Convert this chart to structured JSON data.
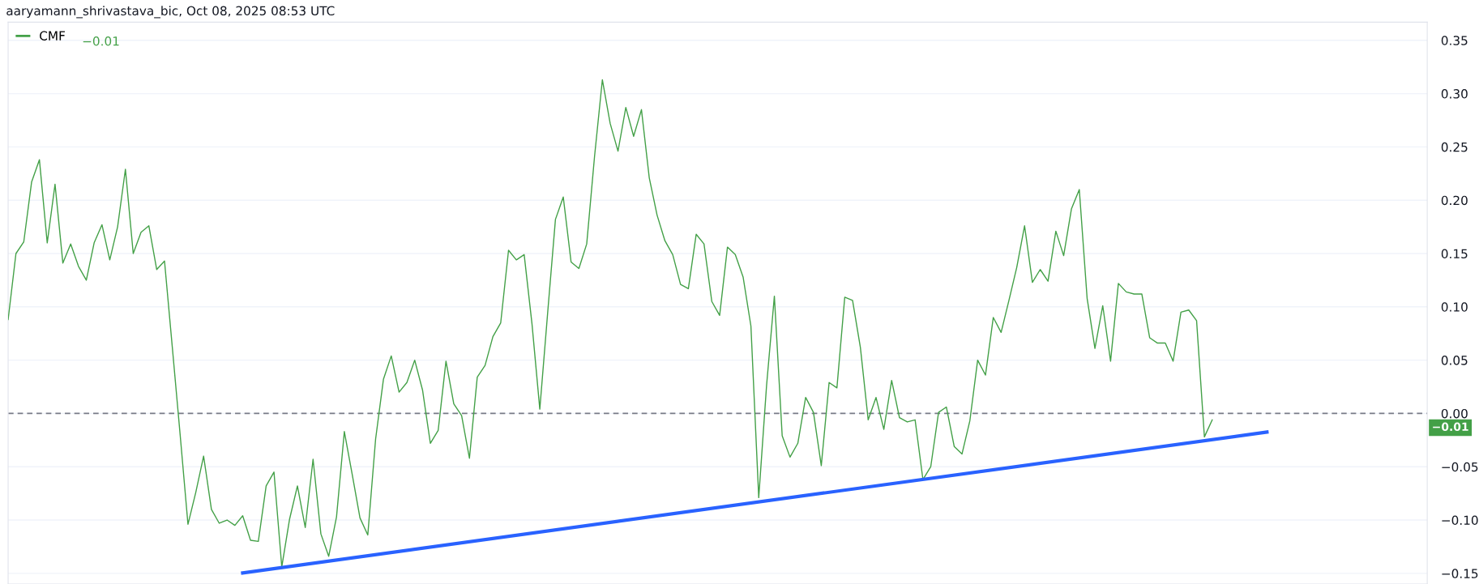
{
  "chart_data": {
    "type": "line",
    "title": "aaryamann_shrivastava_bic, Oct 08, 2025 08:53 UTC",
    "legend": "top left",
    "grid": "y",
    "tick_labels": "y",
    "categories": [
      null,
      null,
      null,
      null,
      null,
      null,
      null,
      null,
      null,
      null,
      null,
      null,
      null,
      null,
      null,
      null,
      null,
      null,
      null,
      null,
      null,
      null,
      null,
      null,
      null,
      null,
      null,
      null,
      null,
      null,
      null,
      null,
      null,
      null,
      null,
      null,
      null,
      null,
      null,
      null,
      null,
      null,
      null,
      null,
      null,
      null,
      null,
      null,
      null,
      null,
      null,
      null,
      null,
      null,
      null,
      null,
      null,
      null,
      null,
      null,
      null,
      null,
      null,
      null,
      null,
      null,
      null,
      null,
      null,
      null,
      null,
      null,
      null,
      null,
      null,
      null,
      null,
      null,
      null,
      null,
      null,
      null,
      null,
      null,
      null,
      null,
      null,
      null,
      null,
      null,
      null,
      null,
      null,
      null,
      null,
      null,
      null,
      null,
      null,
      null,
      null,
      null,
      null,
      null,
      null,
      null,
      null,
      null,
      null,
      null,
      null,
      null,
      null,
      null,
      null,
      null,
      null,
      null,
      null,
      null,
      null,
      null,
      null,
      null,
      null,
      null,
      null,
      null,
      null,
      null,
      null,
      null,
      null,
      null,
      null,
      null,
      null,
      null,
      null,
      null,
      null,
      null,
      null,
      null,
      null,
      null,
      null,
      null,
      null,
      null,
      null,
      null,
      null,
      null,
      null,
      null,
      null,
      null,
      null,
      null,
      null,
      null,
      null,
      null,
      null,
      null,
      null,
      null,
      null,
      null,
      null,
      null,
      null,
      null,
      null,
      null,
      null,
      null,
      null,
      null,
      null,
      null
    ],
    "ylim": [
      -0.16,
      0.367
    ],
    "yticks": [
      {
        "value": -0.15,
        "label": "−0.15"
      },
      {
        "value": -0.1,
        "label": "−0.10"
      },
      {
        "value": -0.05,
        "label": "−0.05"
      },
      {
        "value": 0,
        "label": "0.00"
      },
      {
        "value": 0.05,
        "label": "0.05"
      },
      {
        "value": 0.1,
        "label": "0.10"
      },
      {
        "value": 0.15,
        "label": "0.15"
      },
      {
        "value": 0.2,
        "label": "0.20"
      },
      {
        "value": 0.25,
        "label": "0.25"
      },
      {
        "value": 0.3,
        "label": "0.30"
      },
      {
        "value": 0.35,
        "label": "0.35"
      }
    ],
    "ref_lines": [
      {
        "axis": "y",
        "value": 0,
        "label": null,
        "color": "#787b86",
        "line_style": "dashed"
      }
    ],
    "annotations": [
      "−0.01",
      "−0.01"
    ],
    "series": [
      {
        "name": "CMF",
        "color": "#43a047",
        "values": [
          0.088,
          0.15,
          0.161,
          0.217,
          0.238,
          0.16,
          0.215,
          0.141,
          0.159,
          0.138,
          0.125,
          0.16,
          0.177,
          0.144,
          0.175,
          0.229,
          0.15,
          0.17,
          0.176,
          0.135,
          0.143,
          0.062,
          -0.02,
          -0.104,
          -0.074,
          -0.04,
          -0.09,
          -0.103,
          -0.1,
          -0.105,
          -0.096,
          -0.119,
          -0.12,
          -0.068,
          -0.055,
          -0.144,
          -0.099,
          -0.068,
          -0.107,
          -0.043,
          -0.113,
          -0.134,
          -0.097,
          -0.017,
          -0.057,
          -0.098,
          -0.114,
          -0.024,
          0.032,
          0.054,
          0.02,
          0.029,
          0.05,
          0.022,
          -0.028,
          -0.016,
          0.049,
          0.009,
          -0.002,
          -0.042,
          0.034,
          0.045,
          0.072,
          0.085,
          0.153,
          0.144,
          0.149,
          0.084,
          0.004,
          0.094,
          0.182,
          0.203,
          0.142,
          0.136,
          0.159,
          0.241,
          0.313,
          0.272,
          0.246,
          0.287,
          0.26,
          0.285,
          0.221,
          0.186,
          0.162,
          0.149,
          0.121,
          0.117,
          0.168,
          0.159,
          0.105,
          0.092,
          0.156,
          0.149,
          0.128,
          0.082,
          -0.079,
          0.026,
          0.11,
          -0.021,
          -0.041,
          -0.028,
          0.015,
          0.001,
          -0.049,
          0.029,
          0.024,
          0.109,
          0.106,
          0.062,
          -0.006,
          0.015,
          -0.015,
          0.031,
          -0.004,
          -0.008,
          -0.006,
          -0.062,
          -0.05,
          0.001,
          0.006,
          -0.031,
          -0.038,
          -0.007,
          0.05,
          0.036,
          0.09,
          0.076,
          0.106,
          0.137,
          0.176,
          0.123,
          0.135,
          0.124,
          0.171,
          0.148,
          0.192,
          0.21,
          0.108,
          0.061,
          0.101,
          0.049,
          0.122,
          0.114,
          0.112,
          0.112,
          0.071,
          0.066,
          0.066,
          0.049,
          0.095,
          0.097,
          0.087,
          -0.022,
          -0.006,
          null,
          null,
          null,
          null,
          null,
          null,
          null,
          null,
          null,
          null,
          null,
          null,
          null,
          null,
          null,
          null,
          null,
          null,
          null,
          null,
          null,
          null,
          null,
          null,
          null,
          null,
          null
        ]
      },
      {
        "type": "line",
        "color": "#2962ff",
        "values": [
          null,
          null,
          null,
          null,
          null,
          null,
          null,
          null,
          null,
          null,
          null,
          null,
          null,
          null,
          null,
          null,
          null,
          null,
          null,
          null,
          null,
          null,
          null,
          null,
          null,
          null,
          null,
          null,
          null,
          null,
          -0.1496,
          null,
          null,
          null,
          null,
          null,
          null,
          null,
          null,
          null,
          null,
          null,
          null,
          null,
          null,
          null,
          null,
          null,
          null,
          null,
          null,
          null,
          null,
          null,
          null,
          null,
          null,
          null,
          null,
          null,
          null,
          null,
          null,
          null,
          null,
          null,
          null,
          null,
          null,
          null,
          null,
          null,
          null,
          null,
          null,
          null,
          null,
          null,
          null,
          null,
          null,
          null,
          null,
          null,
          null,
          null,
          null,
          null,
          null,
          null,
          null,
          null,
          null,
          null,
          null,
          null,
          null,
          null,
          null,
          null,
          null,
          null,
          null,
          null,
          null,
          null,
          null,
          null,
          null,
          null,
          null,
          null,
          null,
          null,
          null,
          null,
          null,
          null,
          null,
          null,
          null,
          null,
          null,
          null,
          null,
          null,
          null,
          null,
          null,
          null,
          null,
          null,
          null,
          null,
          null,
          null,
          null,
          null,
          null,
          null,
          null,
          null,
          null,
          null,
          null,
          null,
          null,
          null,
          null,
          null,
          null,
          null,
          null,
          null,
          null,
          null,
          null,
          null,
          null,
          null,
          null,
          -0.0175,
          null,
          null,
          null,
          null,
          null,
          null,
          null,
          null,
          null,
          null,
          null,
          null,
          null,
          null,
          null,
          null,
          null,
          null,
          null,
          null
        ]
      }
    ]
  }
}
